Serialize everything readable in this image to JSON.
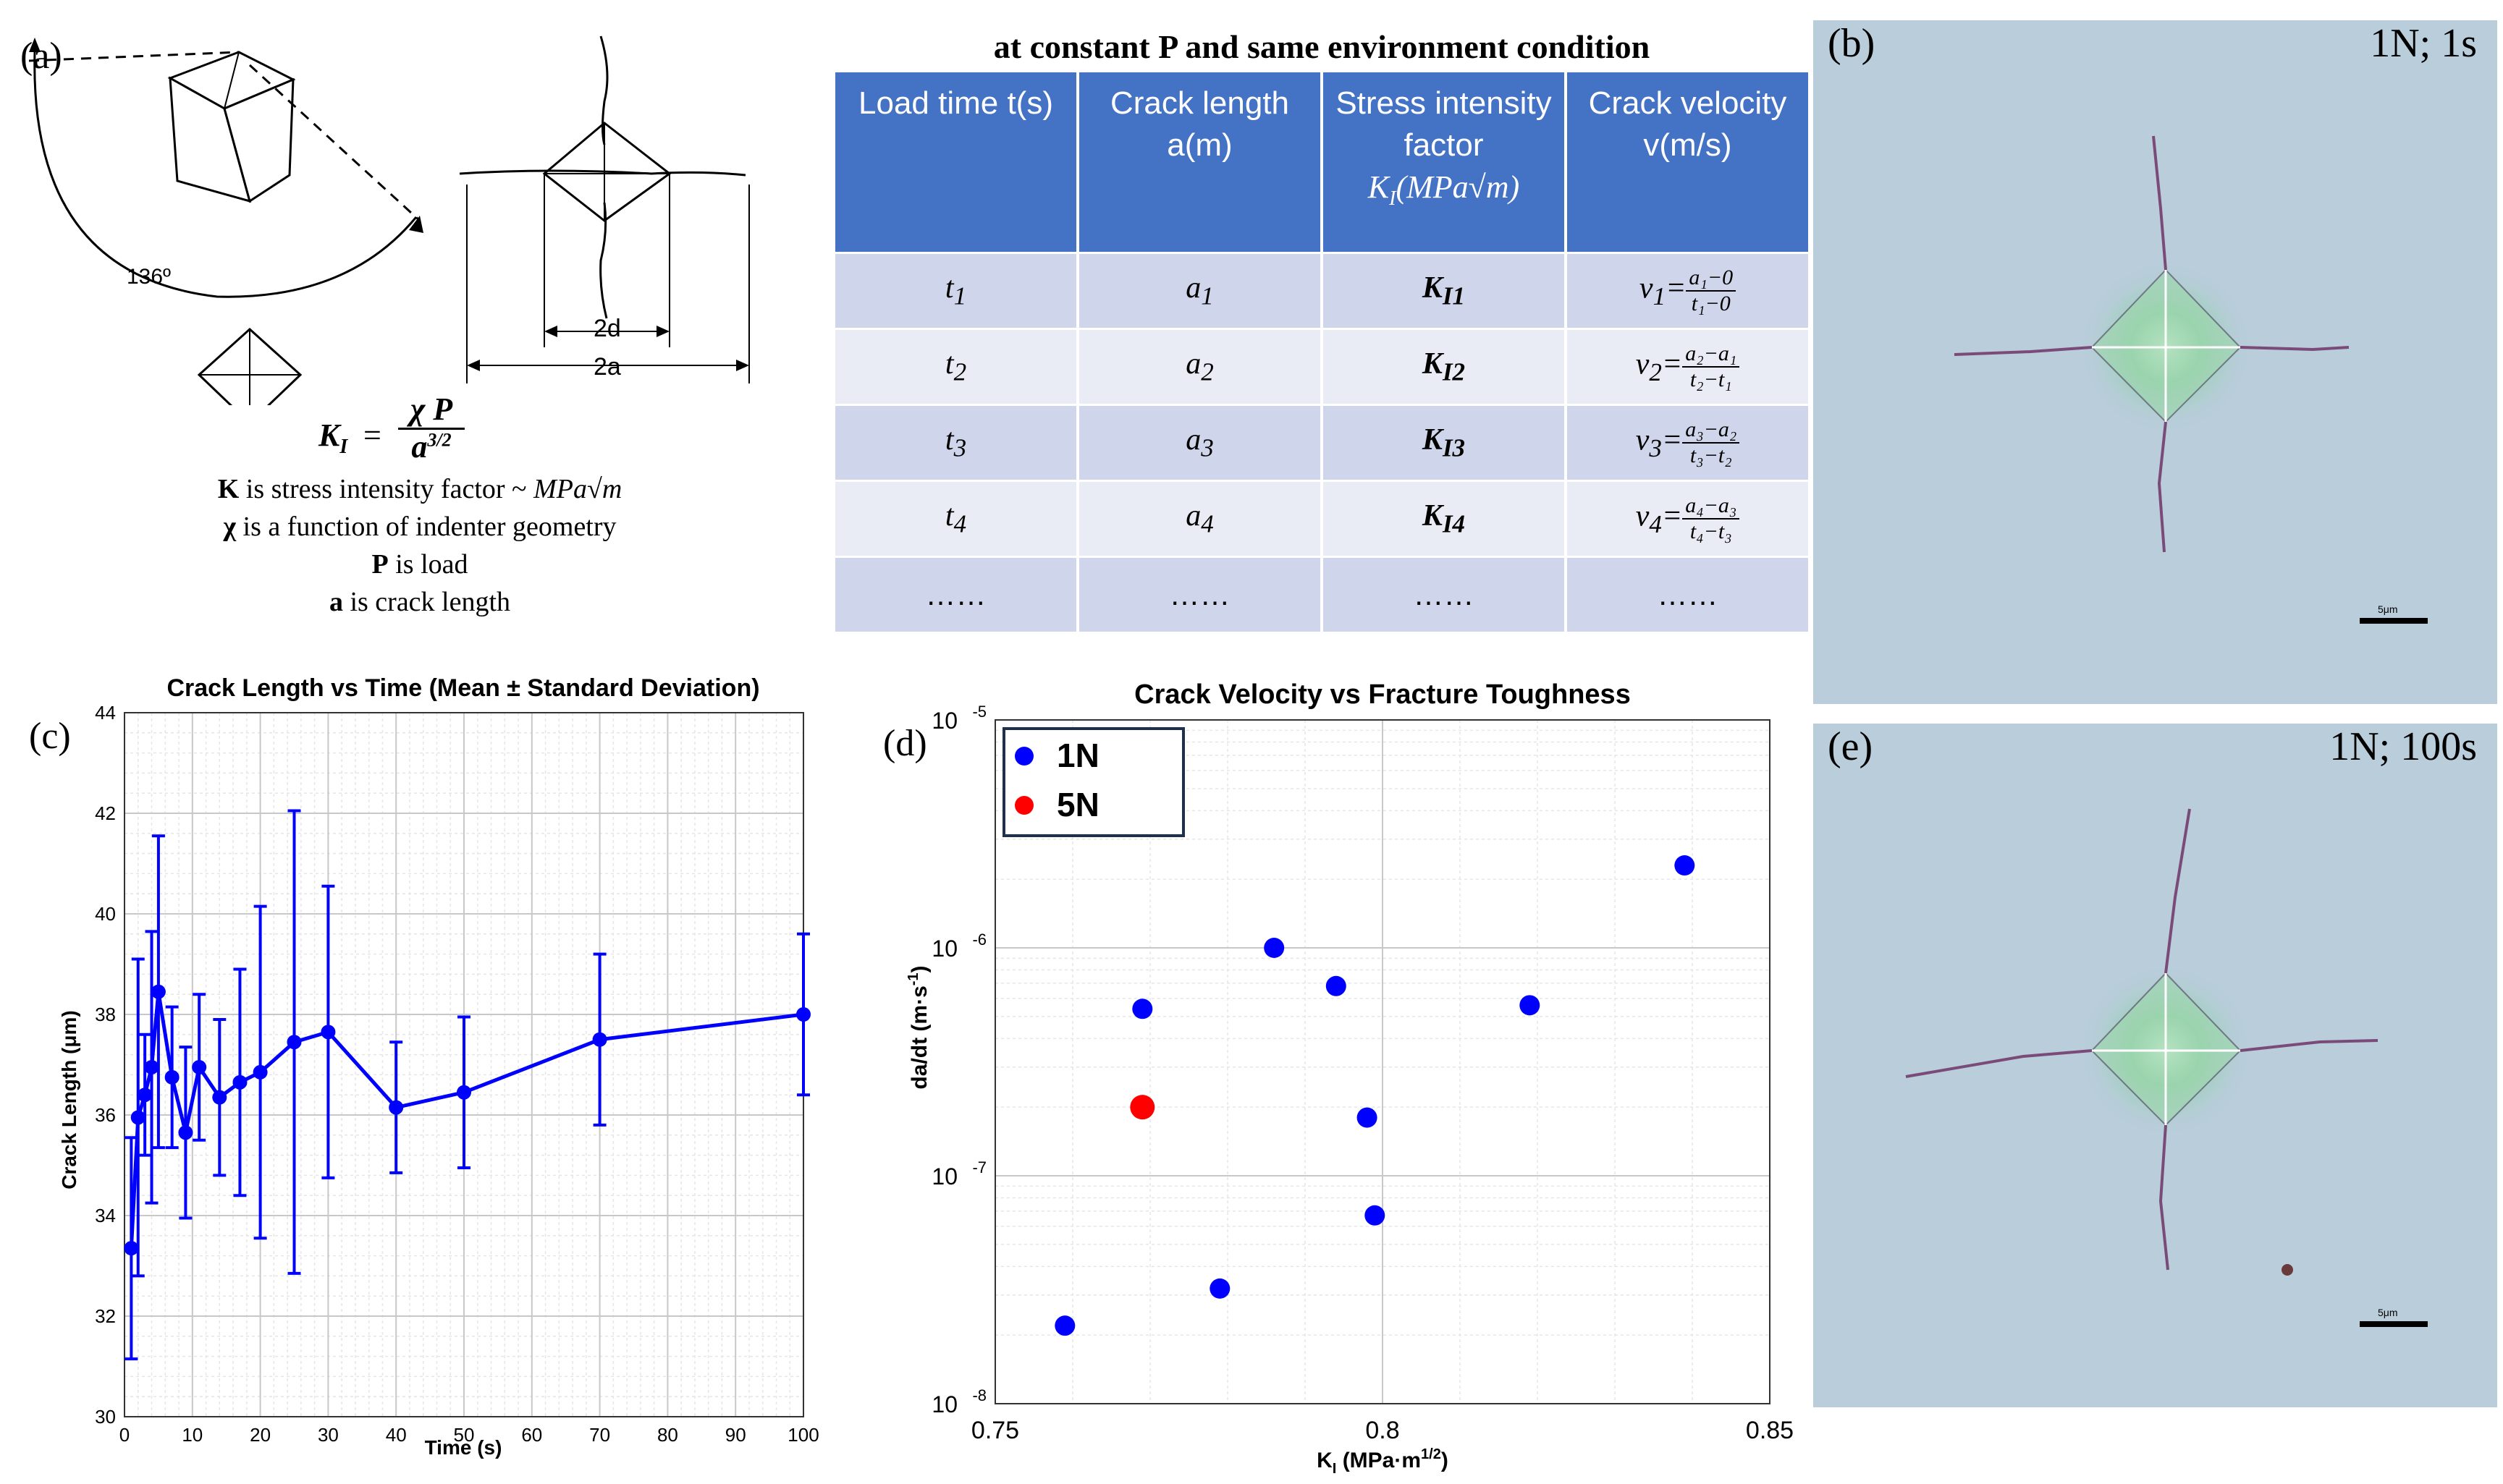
{
  "panel_a": {
    "label": "(a)",
    "angle_label": "136º",
    "dim_2d": "2d",
    "dim_2a": "2a",
    "formula_lhs": "K",
    "formula_sub": "I",
    "formula_eq": "=",
    "formula_num": "χ P",
    "formula_den": "a",
    "formula_den_exp": "3/2",
    "notes": [
      {
        "bold": "K",
        "text": " is stress intensity  factor ~ ",
        "math": "MPa√m"
      },
      {
        "bold": "χ",
        "text": " is a function of indenter geometry",
        "math": ""
      },
      {
        "bold": "P",
        "text": " is load",
        "math": ""
      },
      {
        "bold": "a",
        "text": " is crack length",
        "math": ""
      }
    ]
  },
  "table": {
    "title": "at constant P and same environment condition",
    "headers": [
      "Load time t(s)",
      "Crack length a(m)",
      "Stress intensity factor",
      "Crack velocity v(m/s)"
    ],
    "header_unit_3": "K",
    "header_unit_3_sub": "I",
    "header_unit_3_rest": "(MPa√m)",
    "rows": [
      {
        "t": "t",
        "ti": "1",
        "a": "a",
        "ai": "1",
        "k": "K",
        "ki": "I1",
        "v": "v",
        "vi": "1",
        "vnum": "a₁−0",
        "vden": "t₁−0"
      },
      {
        "t": "t",
        "ti": "2",
        "a": "a",
        "ai": "2",
        "k": "K",
        "ki": "I2",
        "v": "v",
        "vi": "2",
        "vnum": "a₂−a₁",
        "vden": "t₂−t₁"
      },
      {
        "t": "t",
        "ti": "3",
        "a": "a",
        "ai": "3",
        "k": "K",
        "ki": "I3",
        "v": "v",
        "vi": "3",
        "vnum": "a₃−a₂",
        "vden": "t₃−t₂"
      },
      {
        "t": "t",
        "ti": "4",
        "a": "a",
        "ai": "4",
        "k": "K",
        "ki": "I4",
        "v": "v",
        "vi": "4",
        "vnum": "a₄−a₃",
        "vden": "t₄−t₃"
      }
    ],
    "ellipsis": "……"
  },
  "micrograph_b": {
    "label": "(b)",
    "title": "1N; 1s",
    "scale": "5μm"
  },
  "micrograph_e": {
    "label": "(e)",
    "title": "1N; 100s",
    "scale": "5μm"
  },
  "panel_c_label": "(c)",
  "panel_d_label": "(d)",
  "colors": {
    "series_blue": "#0000FF",
    "series_red": "#FF0000",
    "table_header": "#4472C4"
  },
  "chart_data": [
    {
      "type": "line",
      "title": "Crack Length vs Time (Mean ± Standard Deviation)",
      "xlabel": "Time (s)",
      "ylabel": "Crack Length (μm)",
      "xlim": [
        0,
        100
      ],
      "ylim": [
        30,
        44
      ],
      "xticks": [
        0,
        10,
        20,
        30,
        40,
        50,
        60,
        70,
        80,
        90,
        100
      ],
      "yticks": [
        30,
        32,
        34,
        36,
        38,
        40,
        42,
        44
      ],
      "grid": true,
      "series": [
        {
          "x": [
            1,
            2,
            3,
            4,
            5,
            7,
            9,
            11,
            14,
            17,
            20,
            25,
            30,
            40,
            50,
            70,
            100
          ],
          "y": [
            33.35,
            35.95,
            36.4,
            36.95,
            38.45,
            36.75,
            35.65,
            36.95,
            36.35,
            36.65,
            36.85,
            37.45,
            37.65,
            36.15,
            36.45,
            37.5,
            38.0
          ],
          "err": [
            2.2,
            3.15,
            1.2,
            2.7,
            3.1,
            1.4,
            1.7,
            1.45,
            1.55,
            2.25,
            3.3,
            4.6,
            2.9,
            1.3,
            1.5,
            1.7,
            1.6
          ]
        }
      ]
    },
    {
      "type": "scatter",
      "title": "Crack Velocity vs Fracture Toughness",
      "xlabel": "K",
      "xlabel_sub": "I",
      "xlabel_rest": " (MPa·m",
      "xlabel_sup": "1/2",
      "xlabel_end": ")",
      "ylabel": "da/dt (m·s",
      "ylabel_sup": "-1",
      "ylabel_end": ")",
      "xlim": [
        0.75,
        0.85
      ],
      "ylim": [
        1e-08,
        1e-05
      ],
      "yscale": "log",
      "xticks": [
        "0.75",
        "0.8",
        "0.85"
      ],
      "yticks": [
        {
          "base": "10",
          "exp": "-8"
        },
        {
          "base": "10",
          "exp": "-7"
        },
        {
          "base": "10",
          "exp": "-6"
        },
        {
          "base": "10",
          "exp": "-5"
        }
      ],
      "grid": true,
      "legend_position": "top-left",
      "series": [
        {
          "name": "1N",
          "x": [
            0.759,
            0.769,
            0.779,
            0.786,
            0.794,
            0.798,
            0.799,
            0.819,
            0.839
          ],
          "y": [
            2.2e-08,
            5.4e-07,
            3.2e-08,
            1e-06,
            6.8e-07,
            1.8e-07,
            6.7e-08,
            5.6e-07,
            2.3e-06
          ]
        },
        {
          "name": "5N",
          "x": [
            0.769
          ],
          "y": [
            2e-07
          ]
        }
      ]
    }
  ]
}
